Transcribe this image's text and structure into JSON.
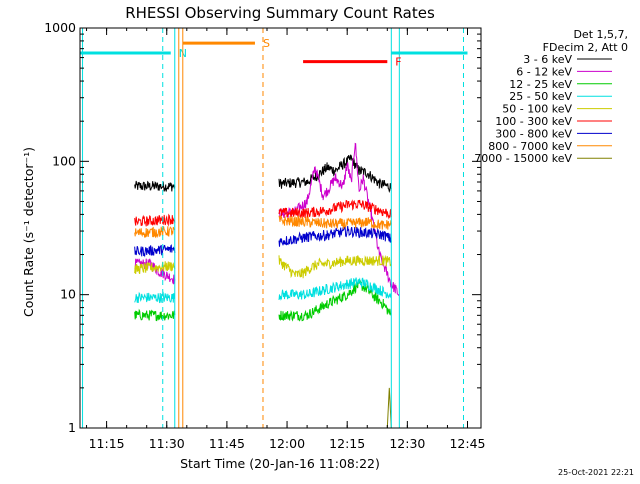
{
  "chart_data": {
    "type": "line",
    "title": "RHESSI Observing Summary Count Rates",
    "xlabel": "Start Time (20-Jan-16 11:08:22)",
    "ylabel": "Count Rate (s⁻¹ detector⁻¹)",
    "y_scale": "log",
    "ylim": [
      1,
      1000
    ],
    "xlim": [
      "11:08:22",
      "12:48:22"
    ],
    "x_ticks": [
      "11:15",
      "11:30",
      "11:45",
      "12:00",
      "12:15",
      "12:30",
      "12:45"
    ],
    "y_ticks": [
      "1",
      "10",
      "100",
      "1000"
    ],
    "info_lines": [
      "Det 1,5,7,",
      "FDecim 2, Att 0"
    ],
    "footer": "25-Oct-2021 22:21",
    "data_gaps": [
      [
        "11:32:30",
        "11:58:00"
      ],
      [
        "12:26:30",
        "12:30:30"
      ]
    ],
    "series": [
      {
        "name": "3 - 6 keV",
        "color": "#000000",
        "x": [
          "11:22",
          "11:32",
          "11:58",
          "12:05",
          "12:08",
          "12:10",
          "12:12",
          "12:14",
          "12:16",
          "12:18",
          "12:20",
          "12:23",
          "12:26"
        ],
        "y": [
          65,
          65,
          68,
          70,
          80,
          90,
          85,
          95,
          105,
          85,
          82,
          68,
          64
        ]
      },
      {
        "name": "6 - 12 keV",
        "color": "#cc00cc",
        "x": [
          "11:22",
          "11:26",
          "11:28",
          "11:30",
          "11:32",
          "11:58",
          "12:02",
          "12:05",
          "12:07",
          "12:09",
          "12:10",
          "12:12",
          "12:14",
          "12:15",
          "12:16",
          "12:17",
          "12:18",
          "12:19",
          "12:21",
          "12:23",
          "12:26",
          "12:27",
          "12:28"
        ],
        "y": [
          17,
          17,
          15,
          14,
          13,
          40,
          42,
          50,
          90,
          55,
          60,
          75,
          65,
          95,
          70,
          140,
          60,
          75,
          40,
          20,
          12,
          11,
          10
        ]
      },
      {
        "name": "12 - 25 keV",
        "color": "#00cc00",
        "x": [
          "11:22",
          "11:32",
          "11:58",
          "12:05",
          "12:10",
          "12:15",
          "12:18",
          "12:20",
          "12:22",
          "12:24",
          "12:26"
        ],
        "y": [
          7,
          7,
          7,
          7,
          8.5,
          10,
          12,
          11,
          9.5,
          8.5,
          7
        ]
      },
      {
        "name": "25 - 50 keV",
        "color": "#00e0e0",
        "x": [
          "11:22",
          "11:32",
          "11:58",
          "12:05",
          "12:10",
          "12:15",
          "12:18",
          "12:20",
          "12:24",
          "12:26"
        ],
        "y": [
          9.5,
          9.5,
          10,
          10,
          11,
          12,
          12.5,
          12,
          10.5,
          10
        ]
      },
      {
        "name": "50 - 100 keV",
        "color": "#cccc00",
        "x": [
          "11:22",
          "11:32",
          "11:58",
          "12:00",
          "12:02",
          "12:04",
          "12:06",
          "12:08",
          "12:10",
          "12:15",
          "12:20",
          "12:24",
          "12:26"
        ],
        "y": [
          15.5,
          16.5,
          18,
          16,
          14,
          14.5,
          16,
          17,
          17,
          18,
          18,
          18,
          17.5
        ]
      },
      {
        "name": "100 - 300 keV",
        "color": "#ff0000",
        "x": [
          "11:22",
          "11:32",
          "11:58",
          "12:05",
          "12:10",
          "12:15",
          "12:18",
          "12:20",
          "12:24",
          "12:26"
        ],
        "y": [
          35,
          37,
          41,
          41,
          43,
          47,
          48,
          46,
          42,
          40
        ]
      },
      {
        "name": "300 - 800 keV",
        "color": "#0000cc",
        "x": [
          "11:22",
          "11:32",
          "11:58",
          "12:05",
          "12:10",
          "12:15",
          "12:20",
          "12:24",
          "12:26"
        ],
        "y": [
          21,
          22,
          25,
          27,
          28,
          30,
          29,
          28,
          26
        ]
      },
      {
        "name": "800 - 7000 keV",
        "color": "#ff8800",
        "x": [
          "11:22",
          "11:32",
          "11:58",
          "12:05",
          "12:10",
          "12:15",
          "12:20",
          "12:24",
          "12:26"
        ],
        "y": [
          29,
          30,
          36,
          35,
          34,
          34,
          35,
          33,
          34
        ]
      },
      {
        "name": "7000 - 15000 keV",
        "color": "#808000",
        "x": [
          "12:25",
          "12:25:30",
          "12:26"
        ],
        "y": [
          1,
          2,
          1
        ]
      }
    ],
    "annotations": [
      {
        "label": "N",
        "color": "#00e0e0",
        "start": "11:08:22",
        "end": "11:31",
        "level": 650,
        "dashed_at": [
          "11:29",
          "12:44"
        ],
        "solid_at": [
          "11:09",
          "11:32",
          "12:26",
          "12:28"
        ]
      },
      {
        "label": "S",
        "color": "#ff8800",
        "start": "11:34",
        "end": "11:52",
        "level": 770,
        "dashed_at": [
          "11:54"
        ],
        "solid_at": [
          "11:33",
          "11:34"
        ]
      },
      {
        "label": "F",
        "color": "#ff0000",
        "start": "12:04",
        "end": "12:25",
        "level": 560,
        "dashed_at": [],
        "solid_at": []
      }
    ],
    "n_segment_after": {
      "start": "12:26",
      "end": "12:45",
      "level": 650
    },
    "grid": false,
    "legend": "right"
  }
}
